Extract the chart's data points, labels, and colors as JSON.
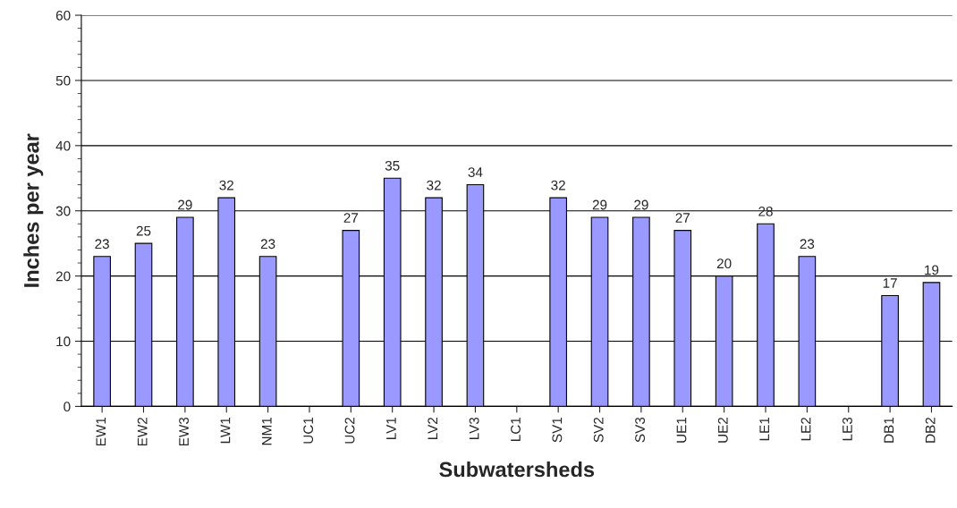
{
  "chart_data": {
    "type": "bar",
    "xlabel": "Subwatersheds",
    "ylabel": "Inches per year",
    "categories": [
      "EW1",
      "EW2",
      "EW3",
      "LW1",
      "NM1",
      "UC1",
      "UC2",
      "LV1",
      "LV2",
      "LV3",
      "LC1",
      "SV1",
      "SV2",
      "SV3",
      "UE1",
      "UE2",
      "LE1",
      "LE2",
      "LE3",
      "DB1",
      "DB2"
    ],
    "values": [
      23,
      25,
      29,
      32,
      23,
      null,
      27,
      35,
      32,
      34,
      null,
      32,
      29,
      29,
      27,
      20,
      28,
      23,
      null,
      17,
      19
    ],
    "color": "#9999ff",
    "ylim": [
      0,
      60
    ],
    "yticks": [
      0,
      10,
      20,
      30,
      40,
      50,
      60
    ],
    "grid": "y",
    "data_labels": true,
    "legend": false
  }
}
